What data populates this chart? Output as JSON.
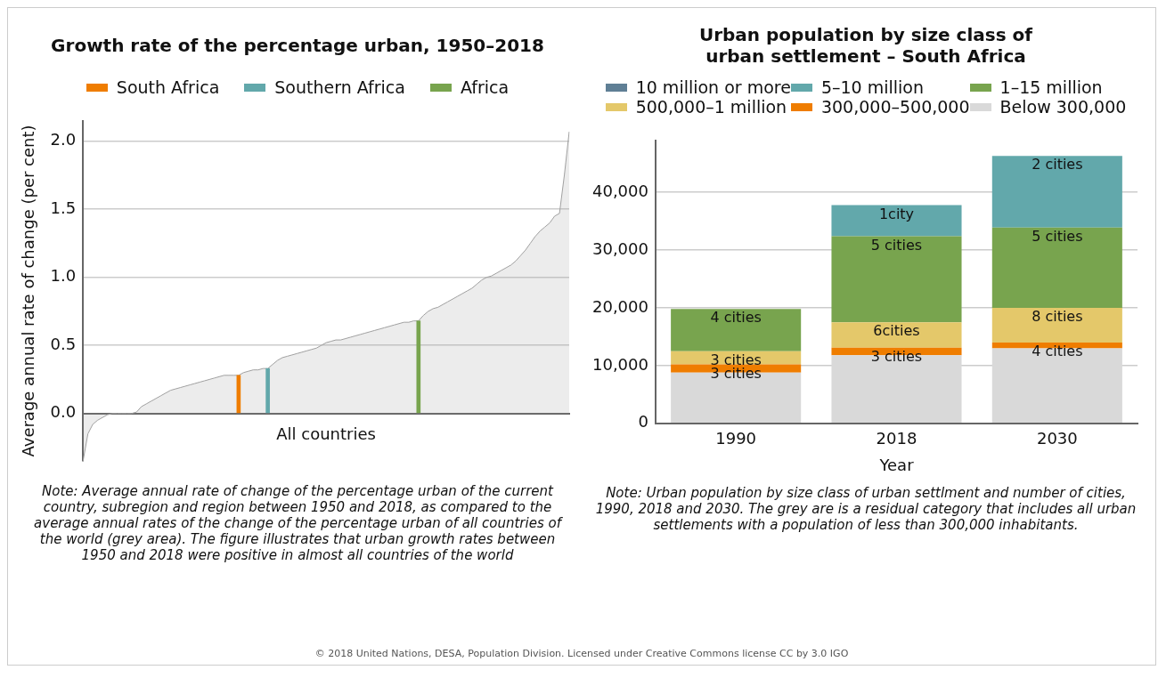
{
  "chart_data": [
    {
      "type": "area",
      "title": "Growth rate of the percentage urban, 1950–2018",
      "xlabel": "All countries",
      "ylabel": "Average annual rate of change (per cent)",
      "categories": [
        null,
        null,
        null,
        null,
        null,
        null,
        null,
        null,
        null,
        null,
        null,
        null,
        null,
        null,
        null,
        null,
        null,
        null,
        null,
        null,
        null,
        null,
        null,
        null,
        null,
        null,
        null,
        null,
        null,
        null,
        null,
        null,
        null,
        null,
        null,
        null,
        null,
        null,
        null,
        null,
        null,
        null,
        null,
        null,
        null,
        null,
        null,
        null,
        null,
        null,
        null,
        null,
        null,
        null,
        null,
        null,
        null,
        null,
        null,
        null,
        null,
        null,
        null,
        null,
        null,
        null,
        null,
        null,
        null,
        null,
        null,
        null,
        null,
        null,
        null,
        null,
        null,
        null,
        null,
        null,
        null,
        null,
        null,
        null,
        null,
        null,
        null,
        null,
        null,
        null,
        null,
        null,
        null,
        null,
        null,
        null,
        null,
        null,
        null,
        null,
        null
      ],
      "series": [
        {
          "type": "area",
          "color": "#a0a0a0",
          "values": [
            -0.35,
            -0.15,
            -0.08,
            -0.05,
            -0.03,
            -0.01,
            0,
            0,
            0,
            0,
            0,
            0.01,
            0.05,
            0.07,
            0.09,
            0.11,
            0.13,
            0.15,
            0.17,
            0.18,
            0.19,
            0.2,
            0.21,
            0.22,
            0.23,
            0.24,
            0.25,
            0.26,
            0.27,
            0.28,
            0.28,
            0.28,
            0.28,
            0.3,
            0.31,
            0.32,
            0.32,
            0.33,
            0.33,
            0.36,
            0.39,
            0.41,
            0.42,
            0.43,
            0.44,
            0.45,
            0.46,
            0.47,
            0.48,
            0.5,
            0.52,
            0.53,
            0.54,
            0.54,
            0.55,
            0.56,
            0.57,
            0.58,
            0.59,
            0.6,
            0.61,
            0.62,
            0.63,
            0.64,
            0.65,
            0.66,
            0.67,
            0.67,
            0.68,
            0.68,
            0.72,
            0.75,
            0.77,
            0.78,
            0.8,
            0.82,
            0.84,
            0.86,
            0.88,
            0.9,
            0.92,
            0.95,
            0.98,
            1.0,
            1.01,
            1.03,
            1.05,
            1.07,
            1.09,
            1.12,
            1.16,
            1.2,
            1.25,
            1.3,
            1.34,
            1.37,
            1.4,
            1.45,
            1.47,
            1.75,
            2.07
          ]
        },
        {
          "type": "bar",
          "name": "South Africa",
          "color": "#ef7d00",
          "values": [
            null,
            null,
            null,
            null,
            null,
            null,
            null,
            null,
            null,
            null,
            null,
            null,
            null,
            null,
            null,
            null,
            null,
            null,
            null,
            null,
            null,
            null,
            null,
            null,
            null,
            null,
            null,
            null,
            null,
            null,
            null,
            null,
            0.28,
            null,
            null,
            null,
            null,
            null,
            null,
            null,
            null,
            null,
            null,
            null,
            null,
            null,
            null,
            null,
            null,
            null,
            null,
            null,
            null,
            null,
            null,
            null,
            null,
            null,
            null,
            null,
            null,
            null,
            null,
            null,
            null,
            null,
            null,
            null,
            null,
            null,
            null,
            null,
            null,
            null,
            null,
            null,
            null,
            null,
            null,
            null,
            null,
            null,
            null,
            null,
            null,
            null,
            null,
            null,
            null,
            null,
            null,
            null,
            null,
            null,
            null,
            null,
            null,
            null,
            null,
            null,
            null
          ]
        },
        {
          "type": "bar",
          "name": "Southern Africa",
          "color": "#62a8ab",
          "values": [
            null,
            null,
            null,
            null,
            null,
            null,
            null,
            null,
            null,
            null,
            null,
            null,
            null,
            null,
            null,
            null,
            null,
            null,
            null,
            null,
            null,
            null,
            null,
            null,
            null,
            null,
            null,
            null,
            null,
            null,
            null,
            null,
            null,
            null,
            null,
            null,
            null,
            null,
            0.33,
            null,
            null,
            null,
            null,
            null,
            null,
            null,
            null,
            null,
            null,
            null,
            null,
            null,
            null,
            null,
            null,
            null,
            null,
            null,
            null,
            null,
            null,
            null,
            null,
            null,
            null,
            null,
            null,
            null,
            null,
            null,
            null,
            null,
            null,
            null,
            null,
            null,
            null,
            null,
            null,
            null,
            null,
            null,
            null,
            null,
            null,
            null,
            null,
            null,
            null,
            null,
            null,
            null,
            null,
            null,
            null,
            null,
            null,
            null,
            null,
            null,
            null
          ]
        },
        {
          "type": "bar",
          "name": "Africa",
          "color": "#78a44e",
          "values": [
            null,
            null,
            null,
            null,
            null,
            null,
            null,
            null,
            null,
            null,
            null,
            null,
            null,
            null,
            null,
            null,
            null,
            null,
            null,
            null,
            null,
            null,
            null,
            null,
            null,
            null,
            null,
            null,
            null,
            null,
            null,
            null,
            null,
            null,
            null,
            null,
            null,
            null,
            null,
            null,
            null,
            null,
            null,
            null,
            null,
            null,
            null,
            null,
            null,
            null,
            null,
            null,
            null,
            null,
            null,
            null,
            null,
            null,
            null,
            null,
            null,
            null,
            null,
            null,
            null,
            null,
            null,
            null,
            null,
            0.68,
            null,
            null,
            null,
            null,
            null,
            null,
            null,
            null,
            null,
            null,
            null,
            null,
            null,
            null,
            null,
            null,
            null,
            null,
            null,
            null,
            null,
            null,
            null,
            null,
            null,
            null,
            null,
            null,
            null,
            null,
            null
          ]
        }
      ],
      "ylim": [
        -0.35,
        2.15
      ],
      "yticks": [
        {
          "value": 0,
          "label": "0.0"
        },
        {
          "value": 0.5,
          "label": "0.5"
        },
        {
          "value": 1,
          "label": "1.0"
        },
        {
          "value": 1.5,
          "label": "1.5"
        },
        {
          "value": 2,
          "label": "2.0"
        }
      ],
      "grid": "y",
      "legend": "top",
      "marker": "none",
      "tick_labels": "y",
      "annotations": [
        "Note: Average annual rate of change of the percentage urban of the current country, subregion and region between 1950 and 2018, as compared to the average annual rates of the change of the percentage urban of all countries of the world (grey area). The figure illustrates that urban growth rates between 1950 and 2018 were positive in almost all countries of the world"
      ]
    },
    {
      "type": "bar",
      "title": "Urban population by size class of\nurban settlement – South Africa",
      "xlabel": "Year",
      "categories": [
        "1990",
        "2018",
        "2030"
      ],
      "stacked": true,
      "series": [
        {
          "name": "Below 300,000",
          "color": "#d9d9d9",
          "values": [
            8800,
            11800,
            13000
          ]
        },
        {
          "name": "300,000–500,000",
          "color": "#ef7d00",
          "values": [
            1400,
            1300,
            1000
          ]
        },
        {
          "name": "500,000–1 million",
          "color": "#e4c86a",
          "values": [
            2300,
            4400,
            6000
          ]
        },
        {
          "name": "1–15 million",
          "color": "#78a44e",
          "values": [
            7300,
            14900,
            13900
          ]
        },
        {
          "name": "5–10 million",
          "color": "#62a8ab",
          "values": [
            null,
            5400,
            12400
          ]
        },
        {
          "name": "10 million or more",
          "color": "#5f7f95",
          "values": [
            null,
            null,
            null
          ]
        }
      ],
      "ylim": [
        0,
        49000
      ],
      "yticks": [
        0,
        {
          "value": 10000,
          "label": "10,000"
        },
        {
          "value": 20000,
          "label": "20,000"
        },
        {
          "value": 30000,
          "label": "30,000"
        },
        {
          "value": 40000,
          "label": "40,000"
        }
      ],
      "grid": "y",
      "legend": "top",
      "annotations": [
        "Note: Urban population by size class of urban settlment and number of cities, 1990, 2018 and 2030. The grey are is a residual category that includes all urban settlements with a population of less than 300,000 inhabitants.",
        "© 2018 United Nations, DESA, Population Division. Licensed under Creative Commons license CC by 3.0 IGO",
        {
          "text": "3 cities",
          "x": "1990",
          "y": 10200
        },
        {
          "text": "3 cities",
          "x": "1990",
          "y": 12500
        },
        {
          "text": "4 cities",
          "x": "1990",
          "y": 19800
        },
        {
          "text": "3 cities",
          "x": "2018",
          "y": 13100
        },
        {
          "text": "6cities",
          "x": "2018",
          "y": 17500
        },
        {
          "text": "5 cities",
          "x": "2018",
          "y": 32400
        },
        {
          "text": "1city",
          "x": "2018",
          "y": 37800
        },
        {
          "text": "4 cities",
          "x": "2030",
          "y": 14000
        },
        {
          "text": "8 cities",
          "x": "2030",
          "y": 20000
        },
        {
          "text": "5 cities",
          "x": "2030",
          "y": 33900
        },
        {
          "text": "2 cities",
          "x": "2030",
          "y": 46300
        }
      ]
    }
  ]
}
